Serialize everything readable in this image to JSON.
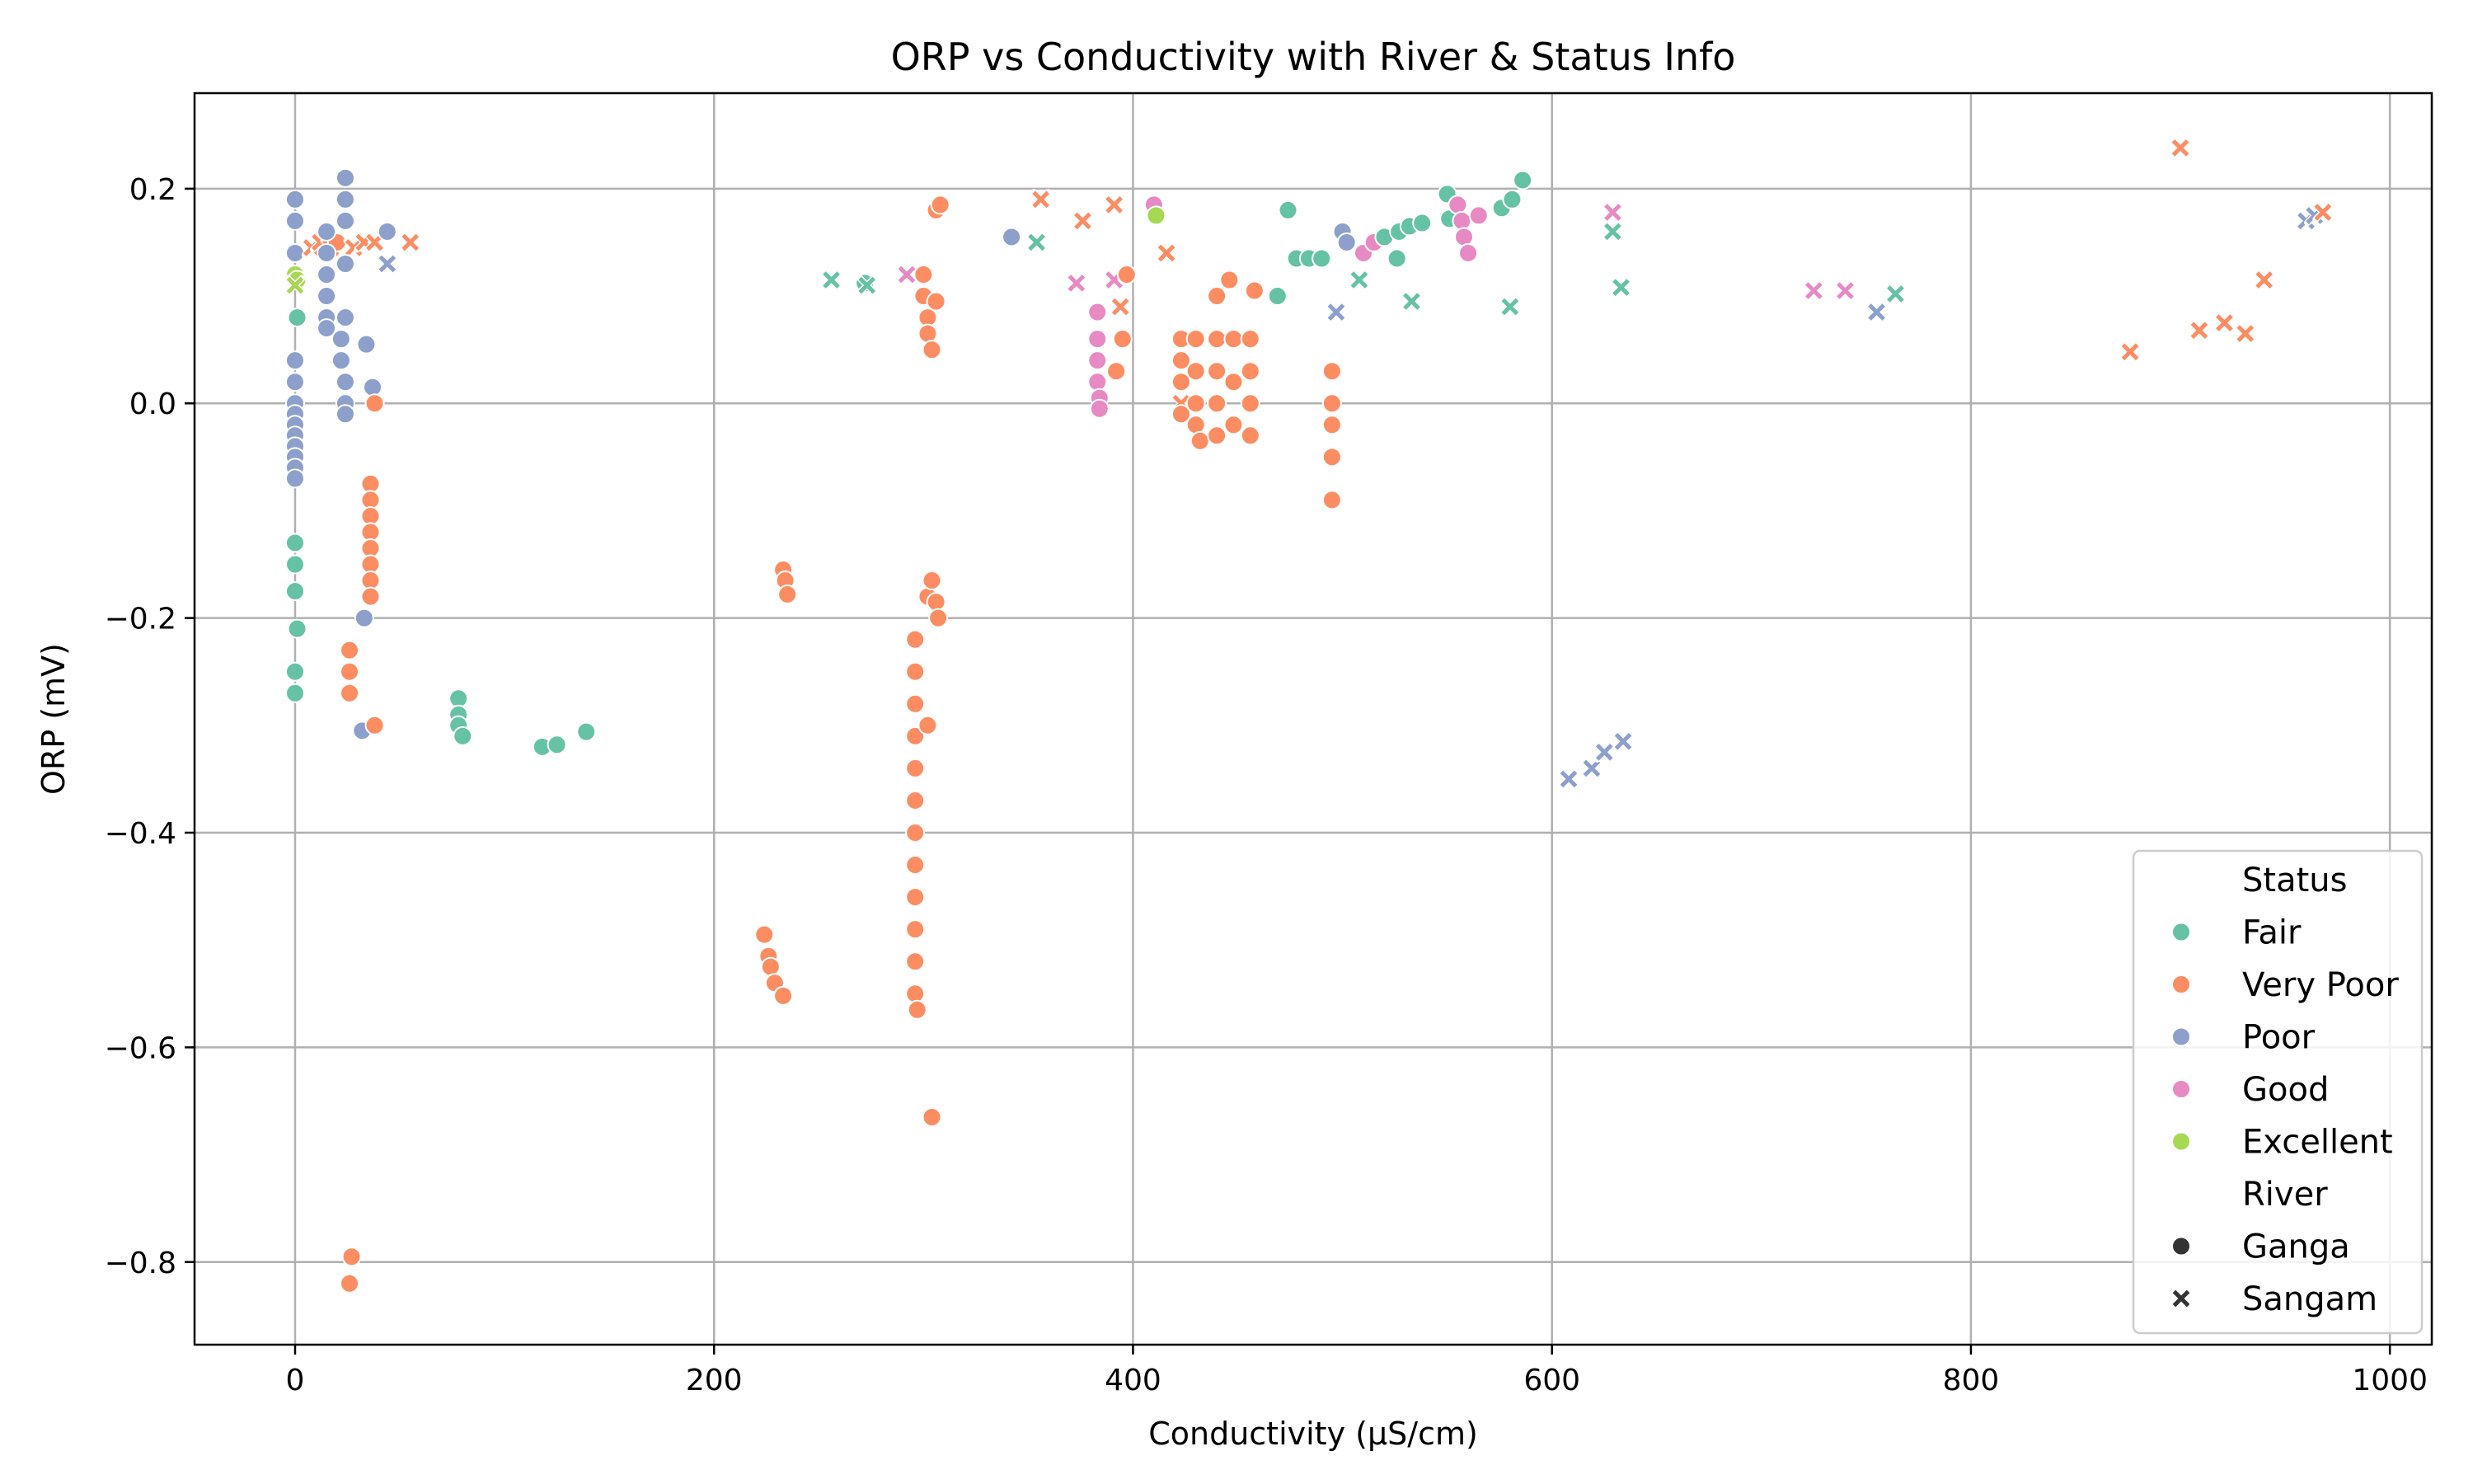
{
  "chart_data": {
    "type": "scatter",
    "title": "ORP vs Conductivity with River & Status Info",
    "xlabel": "Conductivity (µS/cm)",
    "ylabel": "ORP (mV)",
    "xlim": [
      -48,
      1020
    ],
    "ylim": [
      -0.877,
      0.289
    ],
    "x_ticks": [
      0,
      200,
      400,
      600,
      800,
      1000
    ],
    "x_tick_labels": [
      "0",
      "200",
      "400",
      "600",
      "800",
      "1000"
    ],
    "y_ticks": [
      -0.8,
      -0.6,
      -0.4,
      -0.2,
      0.0,
      0.2
    ],
    "y_tick_labels": [
      "−0.8",
      "−0.6",
      "−0.4",
      "−0.2",
      "0.0",
      "0.2"
    ],
    "grid": true,
    "legend_position": "lower-right",
    "legend": {
      "hue_title": "Status",
      "hue": [
        {
          "label": "Fair",
          "color": "#66c2a5"
        },
        {
          "label": "Very Poor",
          "color": "#fc8d62"
        },
        {
          "label": "Poor",
          "color": "#8da0cb"
        },
        {
          "label": "Good",
          "color": "#e78ac3"
        },
        {
          "label": "Excellent",
          "color": "#a6d854"
        }
      ],
      "style_title": "River",
      "style": [
        {
          "label": "Ganga",
          "marker": "circle"
        },
        {
          "label": "Sangam",
          "marker": "x"
        }
      ]
    },
    "point_columns": [
      "conductivity",
      "orp",
      "status",
      "river"
    ],
    "points": [
      [
        0,
        0.19,
        "Poor",
        "Ganga"
      ],
      [
        0,
        0.17,
        "Poor",
        "Ganga"
      ],
      [
        0,
        0.14,
        "Poor",
        "Ganga"
      ],
      [
        0,
        0.04,
        "Poor",
        "Ganga"
      ],
      [
        0,
        0.02,
        "Poor",
        "Ganga"
      ],
      [
        0,
        0.0,
        "Poor",
        "Ganga"
      ],
      [
        0,
        -0.01,
        "Poor",
        "Ganga"
      ],
      [
        0,
        -0.02,
        "Poor",
        "Ganga"
      ],
      [
        0,
        -0.03,
        "Poor",
        "Ganga"
      ],
      [
        0,
        -0.04,
        "Poor",
        "Ganga"
      ],
      [
        0,
        -0.05,
        "Poor",
        "Ganga"
      ],
      [
        0,
        -0.06,
        "Poor",
        "Ganga"
      ],
      [
        0,
        -0.07,
        "Poor",
        "Ganga"
      ],
      [
        0,
        0.12,
        "Excellent",
        "Ganga"
      ],
      [
        1,
        0.115,
        "Excellent",
        "Ganga"
      ],
      [
        0,
        0.11,
        "Excellent",
        "Sangam"
      ],
      [
        1,
        0.08,
        "Fair",
        "Ganga"
      ],
      [
        0,
        -0.13,
        "Fair",
        "Ganga"
      ],
      [
        0,
        -0.15,
        "Fair",
        "Ganga"
      ],
      [
        0,
        -0.175,
        "Fair",
        "Ganga"
      ],
      [
        1,
        -0.21,
        "Fair",
        "Ganga"
      ],
      [
        0,
        -0.25,
        "Fair",
        "Ganga"
      ],
      [
        0,
        -0.27,
        "Fair",
        "Ganga"
      ],
      [
        8,
        0.145,
        "Very Poor",
        "Sangam"
      ],
      [
        12,
        0.15,
        "Very Poor",
        "Sangam"
      ],
      [
        17,
        0.145,
        "Very Poor",
        "Sangam"
      ],
      [
        20,
        0.15,
        "Very Poor",
        "Ganga"
      ],
      [
        28,
        0.145,
        "Very Poor",
        "Sangam"
      ],
      [
        33,
        0.15,
        "Very Poor",
        "Sangam"
      ],
      [
        38,
        0.15,
        "Very Poor",
        "Sangam"
      ],
      [
        55,
        0.15,
        "Very Poor",
        "Sangam"
      ],
      [
        15,
        0.16,
        "Poor",
        "Ganga"
      ],
      [
        15,
        0.14,
        "Poor",
        "Ganga"
      ],
      [
        15,
        0.12,
        "Poor",
        "Ganga"
      ],
      [
        15,
        0.1,
        "Poor",
        "Ganga"
      ],
      [
        15,
        0.08,
        "Poor",
        "Ganga"
      ],
      [
        15,
        0.07,
        "Poor",
        "Ganga"
      ],
      [
        22,
        0.06,
        "Poor",
        "Ganga"
      ],
      [
        22,
        0.04,
        "Poor",
        "Ganga"
      ],
      [
        24,
        0.02,
        "Poor",
        "Ganga"
      ],
      [
        24,
        0.0,
        "Poor",
        "Ganga"
      ],
      [
        24,
        -0.01,
        "Poor",
        "Ganga"
      ],
      [
        24,
        0.21,
        "Poor",
        "Ganga"
      ],
      [
        24,
        0.19,
        "Poor",
        "Ganga"
      ],
      [
        24,
        0.17,
        "Poor",
        "Ganga"
      ],
      [
        24,
        0.13,
        "Poor",
        "Ganga"
      ],
      [
        24,
        0.08,
        "Poor",
        "Ganga"
      ],
      [
        34,
        0.055,
        "Poor",
        "Ganga"
      ],
      [
        37,
        0.015,
        "Poor",
        "Ganga"
      ],
      [
        44,
        0.16,
        "Poor",
        "Ganga"
      ],
      [
        44,
        0.13,
        "Poor",
        "Sangam"
      ],
      [
        33,
        -0.2,
        "Poor",
        "Ganga"
      ],
      [
        32,
        -0.305,
        "Poor",
        "Ganga"
      ],
      [
        38,
        0.0,
        "Very Poor",
        "Ganga"
      ],
      [
        36,
        -0.075,
        "Very Poor",
        "Ganga"
      ],
      [
        36,
        -0.09,
        "Very Poor",
        "Ganga"
      ],
      [
        36,
        -0.105,
        "Very Poor",
        "Ganga"
      ],
      [
        36,
        -0.12,
        "Very Poor",
        "Ganga"
      ],
      [
        36,
        -0.135,
        "Very Poor",
        "Ganga"
      ],
      [
        36,
        -0.15,
        "Very Poor",
        "Ganga"
      ],
      [
        36,
        -0.165,
        "Very Poor",
        "Ganga"
      ],
      [
        36,
        -0.18,
        "Very Poor",
        "Ganga"
      ],
      [
        26,
        -0.23,
        "Very Poor",
        "Ganga"
      ],
      [
        26,
        -0.25,
        "Very Poor",
        "Ganga"
      ],
      [
        26,
        -0.27,
        "Very Poor",
        "Ganga"
      ],
      [
        38,
        -0.3,
        "Very Poor",
        "Ganga"
      ],
      [
        27,
        -0.795,
        "Very Poor",
        "Ganga"
      ],
      [
        26,
        -0.82,
        "Very Poor",
        "Ganga"
      ],
      [
        78,
        -0.275,
        "Fair",
        "Ganga"
      ],
      [
        78,
        -0.29,
        "Fair",
        "Ganga"
      ],
      [
        78,
        -0.3,
        "Fair",
        "Ganga"
      ],
      [
        80,
        -0.31,
        "Fair",
        "Ganga"
      ],
      [
        118,
        -0.32,
        "Fair",
        "Ganga"
      ],
      [
        125,
        -0.318,
        "Fair",
        "Ganga"
      ],
      [
        139,
        -0.306,
        "Fair",
        "Ganga"
      ],
      [
        224,
        -0.495,
        "Very Poor",
        "Ganga"
      ],
      [
        226,
        -0.515,
        "Very Poor",
        "Ganga"
      ],
      [
        227,
        -0.525,
        "Very Poor",
        "Ganga"
      ],
      [
        229,
        -0.54,
        "Very Poor",
        "Ganga"
      ],
      [
        233,
        -0.552,
        "Very Poor",
        "Ganga"
      ],
      [
        233,
        -0.155,
        "Very Poor",
        "Ganga"
      ],
      [
        234,
        -0.165,
        "Very Poor",
        "Ganga"
      ],
      [
        235,
        -0.178,
        "Very Poor",
        "Ganga"
      ],
      [
        296,
        -0.22,
        "Very Poor",
        "Ganga"
      ],
      [
        296,
        -0.25,
        "Very Poor",
        "Ganga"
      ],
      [
        296,
        -0.28,
        "Very Poor",
        "Ganga"
      ],
      [
        296,
        -0.31,
        "Very Poor",
        "Ganga"
      ],
      [
        296,
        -0.34,
        "Very Poor",
        "Ganga"
      ],
      [
        296,
        -0.37,
        "Very Poor",
        "Ganga"
      ],
      [
        296,
        -0.4,
        "Very Poor",
        "Ganga"
      ],
      [
        296,
        -0.43,
        "Very Poor",
        "Ganga"
      ],
      [
        296,
        -0.46,
        "Very Poor",
        "Ganga"
      ],
      [
        296,
        -0.49,
        "Very Poor",
        "Ganga"
      ],
      [
        296,
        -0.52,
        "Very Poor",
        "Ganga"
      ],
      [
        296,
        -0.55,
        "Very Poor",
        "Ganga"
      ],
      [
        297,
        -0.565,
        "Very Poor",
        "Ganga"
      ],
      [
        302,
        -0.3,
        "Very Poor",
        "Ganga"
      ],
      [
        302,
        -0.18,
        "Very Poor",
        "Ganga"
      ],
      [
        304,
        -0.165,
        "Very Poor",
        "Ganga"
      ],
      [
        306,
        -0.185,
        "Very Poor",
        "Ganga"
      ],
      [
        307,
        -0.2,
        "Very Poor",
        "Ganga"
      ],
      [
        304,
        -0.665,
        "Very Poor",
        "Ganga"
      ],
      [
        300,
        0.12,
        "Very Poor",
        "Ganga"
      ],
      [
        300,
        0.1,
        "Very Poor",
        "Ganga"
      ],
      [
        302,
        0.08,
        "Very Poor",
        "Ganga"
      ],
      [
        302,
        0.065,
        "Very Poor",
        "Ganga"
      ],
      [
        304,
        0.05,
        "Very Poor",
        "Ganga"
      ],
      [
        306,
        0.095,
        "Very Poor",
        "Ganga"
      ],
      [
        306,
        0.18,
        "Very Poor",
        "Ganga"
      ],
      [
        308,
        0.185,
        "Very Poor",
        "Ganga"
      ],
      [
        256,
        0.115,
        "Fair",
        "Sangam"
      ],
      [
        272,
        0.112,
        "Fair",
        "Ganga"
      ],
      [
        273,
        0.11,
        "Fair",
        "Sangam"
      ],
      [
        292,
        0.12,
        "Good",
        "Sangam"
      ],
      [
        342,
        0.155,
        "Poor",
        "Ganga"
      ],
      [
        354,
        0.15,
        "Fair",
        "Sangam"
      ],
      [
        356,
        0.19,
        "Very Poor",
        "Sangam"
      ],
      [
        373,
        0.112,
        "Good",
        "Sangam"
      ],
      [
        376,
        0.17,
        "Very Poor",
        "Sangam"
      ],
      [
        383,
        0.085,
        "Good",
        "Ganga"
      ],
      [
        383,
        0.06,
        "Good",
        "Ganga"
      ],
      [
        383,
        0.04,
        "Good",
        "Ganga"
      ],
      [
        383,
        0.02,
        "Good",
        "Ganga"
      ],
      [
        384,
        0.005,
        "Good",
        "Ganga"
      ],
      [
        384,
        -0.005,
        "Good",
        "Ganga"
      ],
      [
        391,
        0.185,
        "Very Poor",
        "Sangam"
      ],
      [
        391,
        0.115,
        "Good",
        "Sangam"
      ],
      [
        392,
        0.03,
        "Very Poor",
        "Ganga"
      ],
      [
        394,
        0.09,
        "Very Poor",
        "Sangam"
      ],
      [
        395,
        0.06,
        "Very Poor",
        "Ganga"
      ],
      [
        397,
        0.12,
        "Very Poor",
        "Ganga"
      ],
      [
        410,
        0.185,
        "Good",
        "Ganga"
      ],
      [
        411,
        0.175,
        "Excellent",
        "Ganga"
      ],
      [
        416,
        0.14,
        "Very Poor",
        "Sangam"
      ],
      [
        423,
        0.06,
        "Very Poor",
        "Ganga"
      ],
      [
        423,
        0.04,
        "Very Poor",
        "Ganga"
      ],
      [
        423,
        0.02,
        "Very Poor",
        "Ganga"
      ],
      [
        423,
        0.0,
        "Very Poor",
        "Sangam"
      ],
      [
        423,
        -0.01,
        "Very Poor",
        "Ganga"
      ],
      [
        430,
        0.06,
        "Very Poor",
        "Ganga"
      ],
      [
        430,
        0.03,
        "Very Poor",
        "Ganga"
      ],
      [
        430,
        0.0,
        "Very Poor",
        "Ganga"
      ],
      [
        430,
        -0.02,
        "Very Poor",
        "Ganga"
      ],
      [
        432,
        -0.035,
        "Very Poor",
        "Ganga"
      ],
      [
        440,
        0.1,
        "Very Poor",
        "Ganga"
      ],
      [
        440,
        0.06,
        "Very Poor",
        "Ganga"
      ],
      [
        440,
        0.03,
        "Very Poor",
        "Ganga"
      ],
      [
        440,
        0.0,
        "Very Poor",
        "Ganga"
      ],
      [
        440,
        -0.03,
        "Very Poor",
        "Ganga"
      ],
      [
        446,
        0.115,
        "Very Poor",
        "Ganga"
      ],
      [
        448,
        0.06,
        "Very Poor",
        "Ganga"
      ],
      [
        448,
        0.02,
        "Very Poor",
        "Ganga"
      ],
      [
        448,
        -0.02,
        "Very Poor",
        "Ganga"
      ],
      [
        456,
        0.06,
        "Very Poor",
        "Ganga"
      ],
      [
        456,
        0.03,
        "Very Poor",
        "Ganga"
      ],
      [
        456,
        0.0,
        "Very Poor",
        "Ganga"
      ],
      [
        456,
        -0.03,
        "Very Poor",
        "Ganga"
      ],
      [
        458,
        0.105,
        "Very Poor",
        "Ganga"
      ],
      [
        469,
        0.1,
        "Fair",
        "Ganga"
      ],
      [
        474,
        0.18,
        "Fair",
        "Ganga"
      ],
      [
        478,
        0.135,
        "Fair",
        "Ganga"
      ],
      [
        484,
        0.135,
        "Fair",
        "Ganga"
      ],
      [
        490,
        0.135,
        "Fair",
        "Ganga"
      ],
      [
        495,
        0.03,
        "Very Poor",
        "Ganga"
      ],
      [
        495,
        0.0,
        "Very Poor",
        "Ganga"
      ],
      [
        495,
        -0.02,
        "Very Poor",
        "Ganga"
      ],
      [
        495,
        -0.05,
        "Very Poor",
        "Ganga"
      ],
      [
        495,
        -0.09,
        "Very Poor",
        "Ganga"
      ],
      [
        500,
        0.16,
        "Poor",
        "Ganga"
      ],
      [
        502,
        0.15,
        "Poor",
        "Ganga"
      ],
      [
        497,
        0.085,
        "Poor",
        "Sangam"
      ],
      [
        508,
        0.115,
        "Fair",
        "Sangam"
      ],
      [
        510,
        0.14,
        "Good",
        "Ganga"
      ],
      [
        515,
        0.15,
        "Good",
        "Ganga"
      ],
      [
        520,
        0.155,
        "Fair",
        "Ganga"
      ],
      [
        526,
        0.135,
        "Fair",
        "Ganga"
      ],
      [
        527,
        0.16,
        "Fair",
        "Ganga"
      ],
      [
        532,
        0.165,
        "Fair",
        "Ganga"
      ],
      [
        533,
        0.095,
        "Fair",
        "Sangam"
      ],
      [
        538,
        0.168,
        "Fair",
        "Ganga"
      ],
      [
        550,
        0.195,
        "Fair",
        "Ganga"
      ],
      [
        551,
        0.172,
        "Fair",
        "Ganga"
      ],
      [
        555,
        0.185,
        "Good",
        "Ganga"
      ],
      [
        557,
        0.17,
        "Good",
        "Ganga"
      ],
      [
        558,
        0.155,
        "Good",
        "Ganga"
      ],
      [
        560,
        0.14,
        "Good",
        "Ganga"
      ],
      [
        565,
        0.175,
        "Good",
        "Ganga"
      ],
      [
        576,
        0.182,
        "Fair",
        "Ganga"
      ],
      [
        580,
        0.09,
        "Fair",
        "Sangam"
      ],
      [
        581,
        0.19,
        "Fair",
        "Ganga"
      ],
      [
        586,
        0.208,
        "Fair",
        "Ganga"
      ],
      [
        608,
        -0.35,
        "Poor",
        "Sangam"
      ],
      [
        619,
        -0.34,
        "Poor",
        "Sangam"
      ],
      [
        625,
        -0.325,
        "Poor",
        "Sangam"
      ],
      [
        634,
        -0.315,
        "Poor",
        "Sangam"
      ],
      [
        629,
        0.178,
        "Good",
        "Sangam"
      ],
      [
        629,
        0.16,
        "Fair",
        "Sangam"
      ],
      [
        633,
        0.108,
        "Fair",
        "Sangam"
      ],
      [
        725,
        0.105,
        "Good",
        "Sangam"
      ],
      [
        740,
        0.105,
        "Good",
        "Sangam"
      ],
      [
        755,
        0.085,
        "Poor",
        "Sangam"
      ],
      [
        764,
        0.102,
        "Fair",
        "Sangam"
      ],
      [
        876,
        0.048,
        "Very Poor",
        "Sangam"
      ],
      [
        900,
        0.238,
        "Very Poor",
        "Sangam"
      ],
      [
        909,
        0.068,
        "Very Poor",
        "Sangam"
      ],
      [
        921,
        0.075,
        "Very Poor",
        "Sangam"
      ],
      [
        931,
        0.065,
        "Very Poor",
        "Sangam"
      ],
      [
        940,
        0.115,
        "Very Poor",
        "Sangam"
      ],
      [
        960,
        0.17,
        "Poor",
        "Sangam"
      ],
      [
        964,
        0.175,
        "Poor",
        "Sangam"
      ],
      [
        968,
        0.178,
        "Very Poor",
        "Sangam"
      ]
    ]
  }
}
